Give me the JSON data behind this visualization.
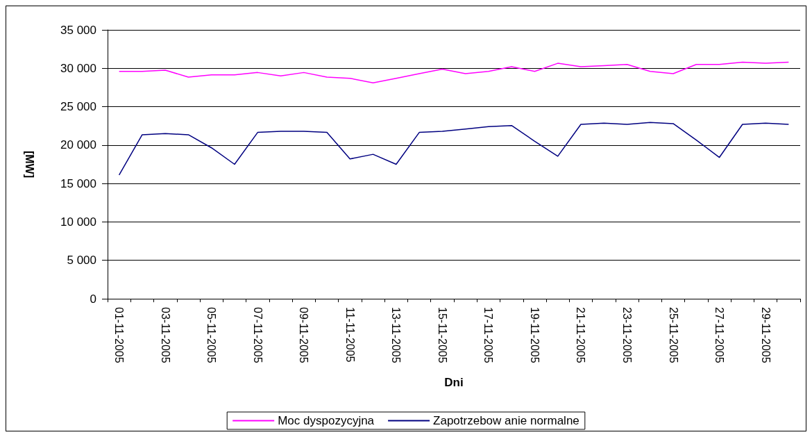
{
  "chart_data": {
    "type": "line",
    "xlabel": "Dni",
    "ylabel": "[MW]",
    "categories": [
      "01-11-2005",
      null,
      "03-11-2005",
      null,
      "05-11-2005",
      null,
      "07-11-2005",
      null,
      "09-11-2005",
      null,
      "11-11-2005",
      null,
      "13-11-2005",
      null,
      "15-11-2005",
      null,
      "17-11-2005",
      null,
      "19-11-2005",
      null,
      "21-11-2005",
      null,
      "23-11-2005",
      null,
      "25-11-2005",
      null,
      "27-11-2005",
      null,
      "29-11-2005",
      null
    ],
    "series": [
      {
        "name": "Moc dyspozycyjna",
        "color": "#ff00ff",
        "values": [
          29600,
          29600,
          29750,
          28850,
          29150,
          29150,
          29450,
          29000,
          29450,
          28850,
          28700,
          28100,
          28700,
          29300,
          29900,
          29300,
          29600,
          30200,
          29600,
          30650,
          30200,
          30350,
          30500,
          29600,
          29300,
          30500,
          30500,
          30800,
          30650,
          30800
        ]
      },
      {
        "name": "Zapotrzebow anie normalne",
        "color": "#000080",
        "values": [
          16100,
          21350,
          21500,
          21350,
          19650,
          17500,
          21650,
          21800,
          21800,
          21650,
          18200,
          18800,
          17500,
          21650,
          21800,
          22100,
          22400,
          22550,
          20500,
          18550,
          22700,
          22850,
          22700,
          22950,
          22800,
          20650,
          18400,
          22700,
          22850,
          22700
        ]
      }
    ],
    "ylim": [
      0,
      35000
    ],
    "yticks": [
      {
        "value": 0,
        "label": "0"
      },
      {
        "value": 5000,
        "label": "5 000"
      },
      {
        "value": 10000,
        "label": "10 000"
      },
      {
        "value": 15000,
        "label": "15 000"
      },
      {
        "value": 20000,
        "label": "20 000"
      },
      {
        "value": 25000,
        "label": "25 000"
      },
      {
        "value": 30000,
        "label": "30 000"
      },
      {
        "value": 35000,
        "label": "35 000"
      }
    ],
    "grid": "y",
    "legend": "bottom",
    "marker": "none",
    "line_style": "solid"
  }
}
